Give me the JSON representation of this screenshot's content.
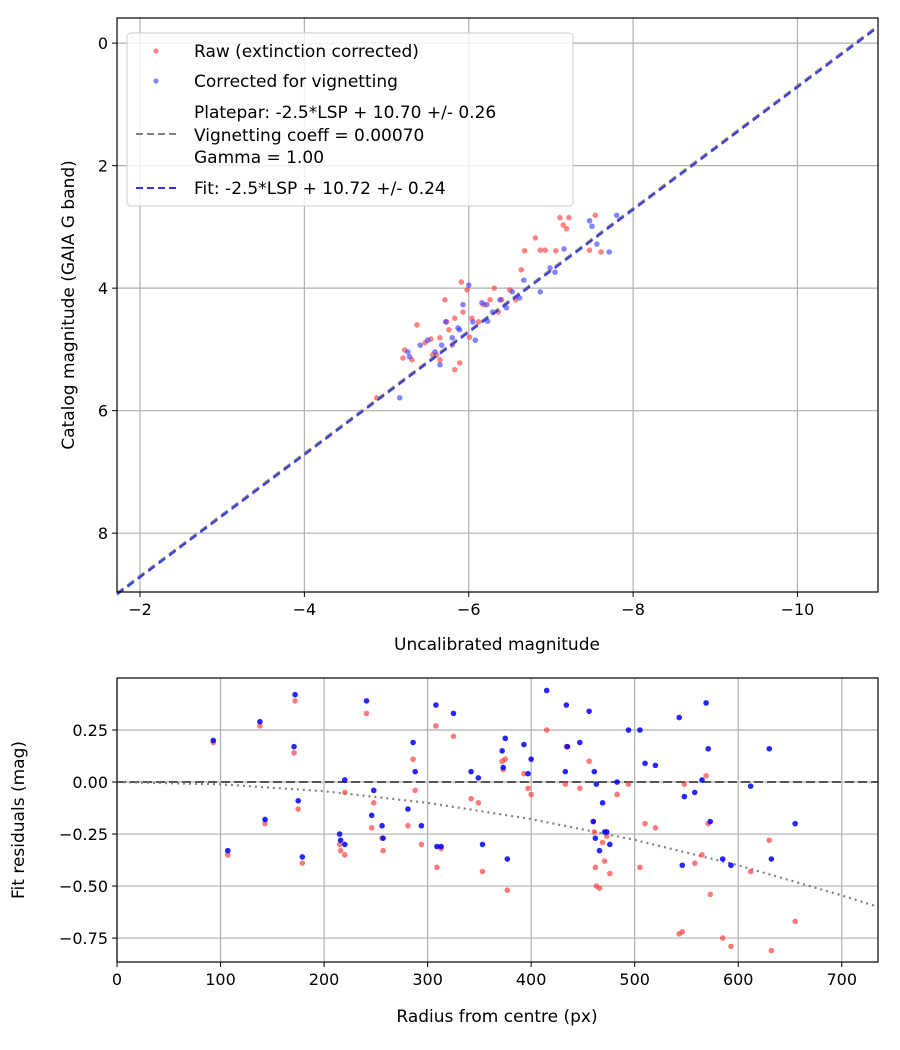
{
  "chart_data": [
    {
      "type": "scatter",
      "xlabel": "Uncalibrated magnitude",
      "ylabel": "Catalog magnitude (GAIA G band)",
      "xlim": [
        -1.72,
        -10.98
      ],
      "ylim": [
        8.96,
        -0.41
      ],
      "x_ticks": [
        -2,
        -4,
        -6,
        -8,
        -10
      ],
      "x_tick_labels": [
        "−2",
        "−4",
        "−6",
        "−8",
        "−10"
      ],
      "y_ticks": [
        0,
        2,
        4,
        6,
        8
      ],
      "y_tick_labels": [
        "0",
        "2",
        "4",
        "6",
        "8"
      ],
      "grid": true,
      "legend_position": "top-left",
      "legend": {
        "raw": "Raw (extinction corrected)",
        "corrected": "Corrected for vignetting",
        "platepar_lines": [
          "Platepar: -2.5*LSP + 10.70 +/- 0.26",
          "Vignetting coeff = 0.00070",
          "Gamma = 1.00"
        ],
        "fit": "Fit: -2.5*LSP + 10.72 +/- 0.24"
      },
      "lines": [
        {
          "name": "platepar",
          "slope": 1,
          "intercept": 10.7,
          "color": "#808080",
          "style": "dashed"
        },
        {
          "name": "fit",
          "slope": 1,
          "intercept": 10.72,
          "color": "#3333ee",
          "style": "dashed"
        }
      ],
      "series": [
        {
          "name": "Raw (extinction corrected)",
          "color": "#ff3333",
          "points": [
            [
              -4.88,
              5.79
            ],
            [
              -5.22,
              5.01
            ],
            [
              -5.2,
              5.14
            ],
            [
              -5.37,
              4.6
            ],
            [
              -5.47,
              4.89
            ],
            [
              -5.54,
              4.83
            ],
            [
              -5.56,
              5.09
            ],
            [
              -5.61,
              5.09
            ],
            [
              -5.65,
              5.17
            ],
            [
              -5.73,
              4.55
            ],
            [
              -5.76,
              4.68
            ],
            [
              -5.8,
              4.93
            ],
            [
              -5.83,
              5.33
            ],
            [
              -5.89,
              5.22
            ],
            [
              -5.93,
              4.39
            ],
            [
              -5.98,
              4.03
            ],
            [
              -6.01,
              4.8
            ],
            [
              -6.04,
              4.49
            ],
            [
              -6.12,
              4.55
            ],
            [
              -6.18,
              4.27
            ],
            [
              -6.26,
              4.19
            ],
            [
              -6.31,
              4.0
            ],
            [
              -6.36,
              4.39
            ],
            [
              -6.4,
              4.19
            ],
            [
              -6.5,
              4.03
            ],
            [
              -6.57,
              4.19
            ],
            [
              -6.64,
              3.7
            ],
            [
              -6.68,
              3.39
            ],
            [
              -6.81,
              3.18
            ],
            [
              -6.87,
              3.38
            ],
            [
              -6.93,
              3.38
            ],
            [
              -7.06,
              3.39
            ],
            [
              -7.11,
              2.85
            ],
            [
              -7.15,
              2.97
            ],
            [
              -7.19,
              3.03
            ],
            [
              -7.22,
              2.85
            ],
            [
              -7.47,
              3.38
            ],
            [
              -7.54,
              2.81
            ],
            [
              -7.61,
              3.41
            ],
            [
              -5.91,
              3.9
            ],
            [
              -5.31,
              5.17
            ],
            [
              -5.65,
              4.81
            ],
            [
              -5.71,
              4.19
            ],
            [
              -5.83,
              4.49
            ]
          ]
        },
        {
          "name": "Corrected for vignetting",
          "color": "#3333ff",
          "points": [
            [
              -5.16,
              5.79
            ],
            [
              -5.26,
              5.04
            ],
            [
              -5.41,
              4.93
            ],
            [
              -5.5,
              4.85
            ],
            [
              -5.59,
              5.04
            ],
            [
              -5.67,
              4.93
            ],
            [
              -5.72,
              4.55
            ],
            [
              -5.8,
              4.81
            ],
            [
              -5.87,
              4.65
            ],
            [
              -5.93,
              4.27
            ],
            [
              -6.0,
              3.95
            ],
            [
              -6.05,
              4.55
            ],
            [
              -6.16,
              4.24
            ],
            [
              -6.22,
              4.27
            ],
            [
              -6.29,
              4.39
            ],
            [
              -6.38,
              4.19
            ],
            [
              -6.46,
              4.32
            ],
            [
              -6.53,
              4.06
            ],
            [
              -6.62,
              4.16
            ],
            [
              -6.67,
              3.87
            ],
            [
              -6.87,
              4.06
            ],
            [
              -6.99,
              3.67
            ],
            [
              -7.05,
              3.74
            ],
            [
              -7.16,
              3.36
            ],
            [
              -7.47,
              2.9
            ],
            [
              -7.5,
              2.99
            ],
            [
              -7.56,
              3.28
            ],
            [
              -7.71,
              3.41
            ],
            [
              -7.8,
              2.81
            ],
            [
              -6.23,
              4.54
            ],
            [
              -6.08,
              4.85
            ],
            [
              -5.89,
              4.68
            ],
            [
              -5.28,
              5.12
            ],
            [
              -5.65,
              5.25
            ]
          ]
        }
      ]
    },
    {
      "type": "scatter",
      "xlabel": "Radius from centre (px)",
      "ylabel": "Fit residuals (mag)",
      "xlim": [
        0,
        735
      ],
      "ylim": [
        -0.865,
        0.5
      ],
      "x_ticks": [
        0,
        100,
        200,
        300,
        400,
        500,
        600,
        700
      ],
      "x_tick_labels": [
        "0",
        "100",
        "200",
        "300",
        "400",
        "500",
        "600",
        "700"
      ],
      "y_ticks": [
        0.25,
        0,
        -0.25,
        -0.5,
        -0.75
      ],
      "y_tick_labels": [
        "0.25",
        "0.00",
        "−0.25",
        "−0.50",
        "−0.75"
      ],
      "grid": true,
      "zero_line": {
        "y": 0,
        "color": "#555555",
        "style": "dashed"
      },
      "vignetting_curve": {
        "color": "#808080",
        "style": "dotted",
        "points": [
          [
            0,
            0
          ],
          [
            100,
            -0.011
          ],
          [
            200,
            -0.044
          ],
          [
            300,
            -0.1
          ],
          [
            400,
            -0.178
          ],
          [
            500,
            -0.278
          ],
          [
            600,
            -0.4
          ],
          [
            700,
            -0.545
          ],
          [
            735,
            -0.6
          ]
        ]
      },
      "radius": [
        93,
        107,
        138,
        143,
        172,
        171,
        175,
        179,
        215,
        216,
        220,
        220,
        241,
        246,
        248,
        256,
        257,
        286,
        288,
        281,
        294,
        308,
        309,
        313,
        325,
        342,
        349,
        353,
        372,
        373,
        375,
        377,
        393,
        397,
        400,
        415,
        433,
        434,
        435,
        447,
        456,
        460,
        461,
        462,
        463,
        466,
        469,
        471,
        473,
        476,
        483,
        494,
        505,
        510,
        520,
        543,
        546,
        548,
        558,
        565,
        569,
        571,
        573,
        585,
        593,
        612,
        630,
        632,
        655
      ],
      "series": [
        {
          "name": "Raw (extinction corrected)",
          "color": "#ff3333",
          "values": [
            0.19,
            -0.35,
            0.27,
            -0.2,
            0.39,
            0.14,
            -0.13,
            -0.39,
            -0.3,
            -0.33,
            -0.05,
            -0.35,
            0.33,
            -0.22,
            -0.1,
            -0.27,
            -0.33,
            0.11,
            -0.04,
            -0.21,
            -0.3,
            0.27,
            -0.41,
            -0.32,
            0.22,
            -0.08,
            -0.1,
            -0.43,
            0.1,
            0.06,
            0.11,
            -0.52,
            0.04,
            -0.03,
            -0.06,
            0.25,
            -0.01,
            0.17,
            0.17,
            -0.03,
            0.1,
            -0.19,
            -0.24,
            -0.41,
            -0.5,
            -0.51,
            -0.29,
            -0.38,
            -0.26,
            -0.44,
            -0.06,
            -0.01,
            -0.41,
            -0.2,
            -0.22,
            -0.73,
            -0.72,
            -0.01,
            -0.39,
            -0.35,
            0.03,
            -0.2,
            -0.54,
            -0.75,
            -0.79,
            -0.43,
            -0.28,
            -0.81,
            -0.67
          ]
        },
        {
          "name": "Corrected for vignetting",
          "color": "#0000ff",
          "values": [
            0.2,
            -0.33,
            0.29,
            -0.18,
            0.42,
            0.17,
            -0.09,
            -0.36,
            -0.25,
            -0.28,
            0.01,
            -0.3,
            0.39,
            -0.16,
            -0.04,
            -0.21,
            -0.27,
            0.19,
            0.05,
            -0.13,
            -0.21,
            0.37,
            -0.31,
            -0.31,
            0.33,
            0.05,
            0.02,
            -0.3,
            0.15,
            0.07,
            0.21,
            -0.37,
            0.18,
            0.04,
            0.11,
            0.44,
            0.05,
            0.37,
            0.17,
            0.19,
            0.34,
            -0.19,
            0.05,
            -0.27,
            -0.01,
            -0.33,
            -0.1,
            -0.24,
            -0.24,
            -0.3,
            0.0,
            0.25,
            0.25,
            0.09,
            0.08,
            0.31,
            -0.4,
            -0.07,
            -0.05,
            0.01,
            0.38,
            0.16,
            -0.19,
            -0.37,
            -0.4,
            -0.02,
            0.16,
            -0.37,
            -0.2
          ]
        }
      ]
    }
  ]
}
